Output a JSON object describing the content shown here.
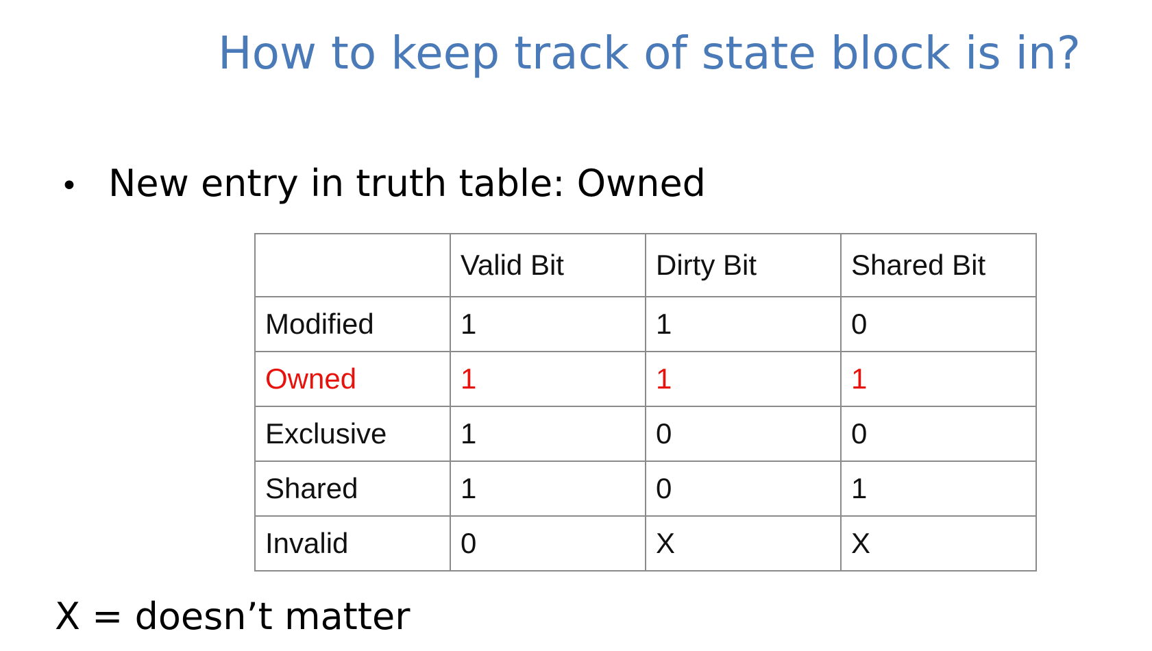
{
  "slide": {
    "title": "How to keep track of state block is in?",
    "bullet": "New entry in truth table: Owned",
    "footnote": "X = doesn’t matter"
  },
  "table": {
    "headers": [
      "",
      "Valid Bit",
      "Dirty Bit",
      "Shared Bit"
    ],
    "rows": [
      {
        "state": "Modified",
        "valid": "1",
        "dirty": "1",
        "shared": "0"
      },
      {
        "state": "Owned",
        "valid": "1",
        "dirty": "1",
        "shared": "1"
      },
      {
        "state": "Exclusive",
        "valid": "1",
        "dirty": "0",
        "shared": "0"
      },
      {
        "state": "Shared",
        "valid": "1",
        "dirty": "0",
        "shared": "1"
      },
      {
        "state": "Invalid",
        "valid": "0",
        "dirty": "X",
        "shared": "X"
      }
    ],
    "highlight_color": "#e8120c"
  },
  "colors": {
    "title": "#4a7ab7",
    "text": "#000000",
    "grid": "#8a8a8a"
  }
}
